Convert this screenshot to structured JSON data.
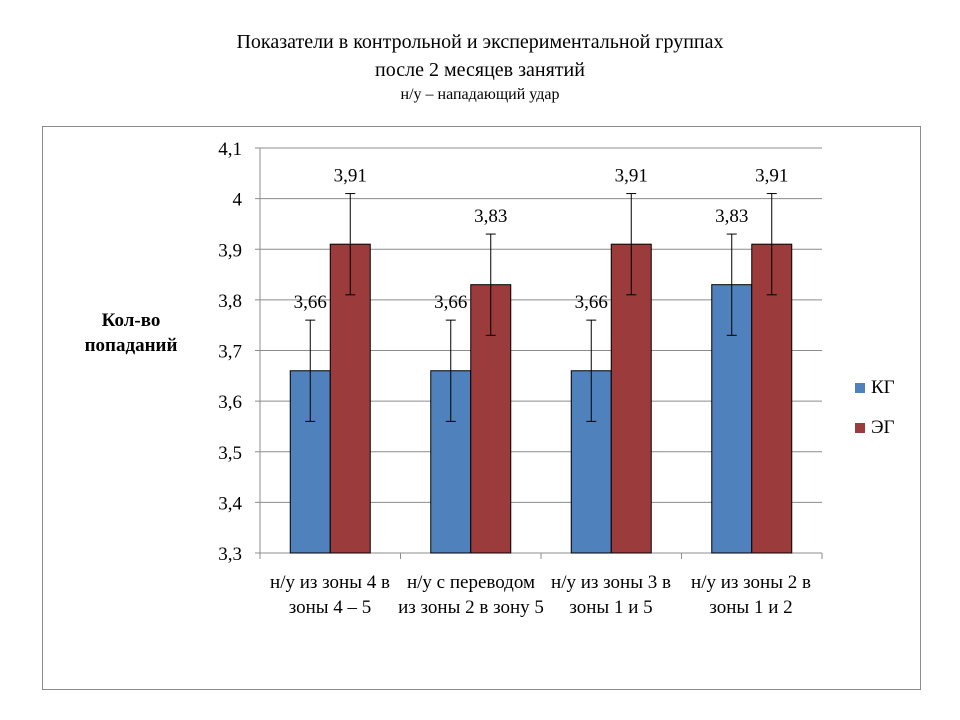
{
  "title": {
    "line1": "Показатели в контрольной и экспериментальной группах",
    "line2": "после 2 месяцев занятий",
    "line3": "н/у – нападающий удар"
  },
  "chart_data": {
    "type": "bar",
    "title": "Показатели в контрольной и экспериментальной группах после 2 месяцев занятий",
    "subtitle": "н/у – нападающий удар",
    "ylabel": "Кол-во попаданий",
    "xlabel": "",
    "ylim": [
      3.3,
      4.1
    ],
    "yticks": [
      "3,3",
      "3,4",
      "3,5",
      "3,6",
      "3,7",
      "3,8",
      "3,9",
      "4",
      "4,1"
    ],
    "grid": true,
    "legend_position": "right",
    "categories": [
      "н/у из зоны 4 в зоны 4 – 5",
      "н/у с переводом из зоны 2 в зону 5",
      "н/у из зоны 3 в зоны 1 и 5",
      "н/у из зоны 2 в зоны 1 и 2"
    ],
    "series": [
      {
        "name": "КГ",
        "color": "#4f81bd",
        "values": [
          3.66,
          3.66,
          3.66,
          3.83
        ],
        "labels": [
          "3,66",
          "3,66",
          "3,66",
          "3,83"
        ],
        "error": 0.1
      },
      {
        "name": "ЭГ",
        "color": "#9b3b3b",
        "values": [
          3.91,
          3.83,
          3.91,
          3.91
        ],
        "labels": [
          "3,91",
          "3,83",
          "3,91",
          "3,91"
        ],
        "error": 0.1
      }
    ]
  }
}
